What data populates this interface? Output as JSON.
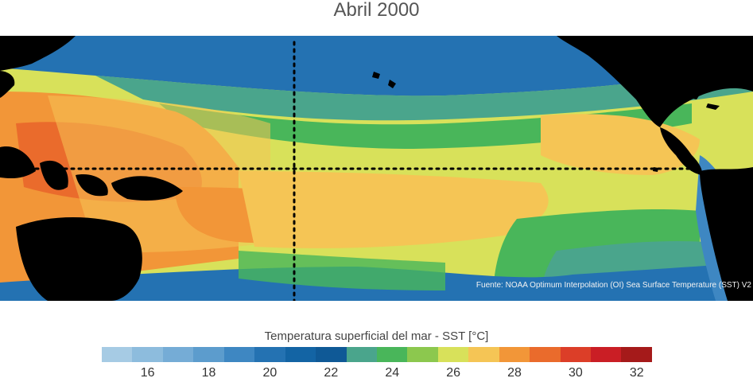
{
  "title": "Abril 2000",
  "source_note": "Fuente: NOAA Optimum Interpolation (OI) Sea Surface Temperature (SST) V2",
  "colorbar": {
    "label": "Temperatura superficial del mar - SST  [°C]",
    "unit": "°C",
    "range": [
      15,
      33
    ],
    "bin_width": 1,
    "tick_values": [
      16,
      18,
      20,
      22,
      24,
      26,
      28,
      30,
      32
    ],
    "tick_labels": [
      "16",
      "18",
      "20",
      "22",
      "24",
      "26",
      "28",
      "30",
      "32"
    ],
    "colors": [
      "#a6cbe4",
      "#8dbcdd",
      "#75acd6",
      "#5c9ccd",
      "#3e87c2",
      "#2472b2",
      "#1364a4",
      "#0f5996",
      "#4aa58c",
      "#49b65a",
      "#8cc84e",
      "#d8e15a",
      "#f5c555",
      "#f29638",
      "#ea6b2c",
      "#dc3e28",
      "#ca1e25",
      "#a51a1a"
    ]
  },
  "map": {
    "land_color": "#000000",
    "reference_lines": [
      "equator",
      "meridian"
    ],
    "reference_line_style": "dotted black"
  }
}
